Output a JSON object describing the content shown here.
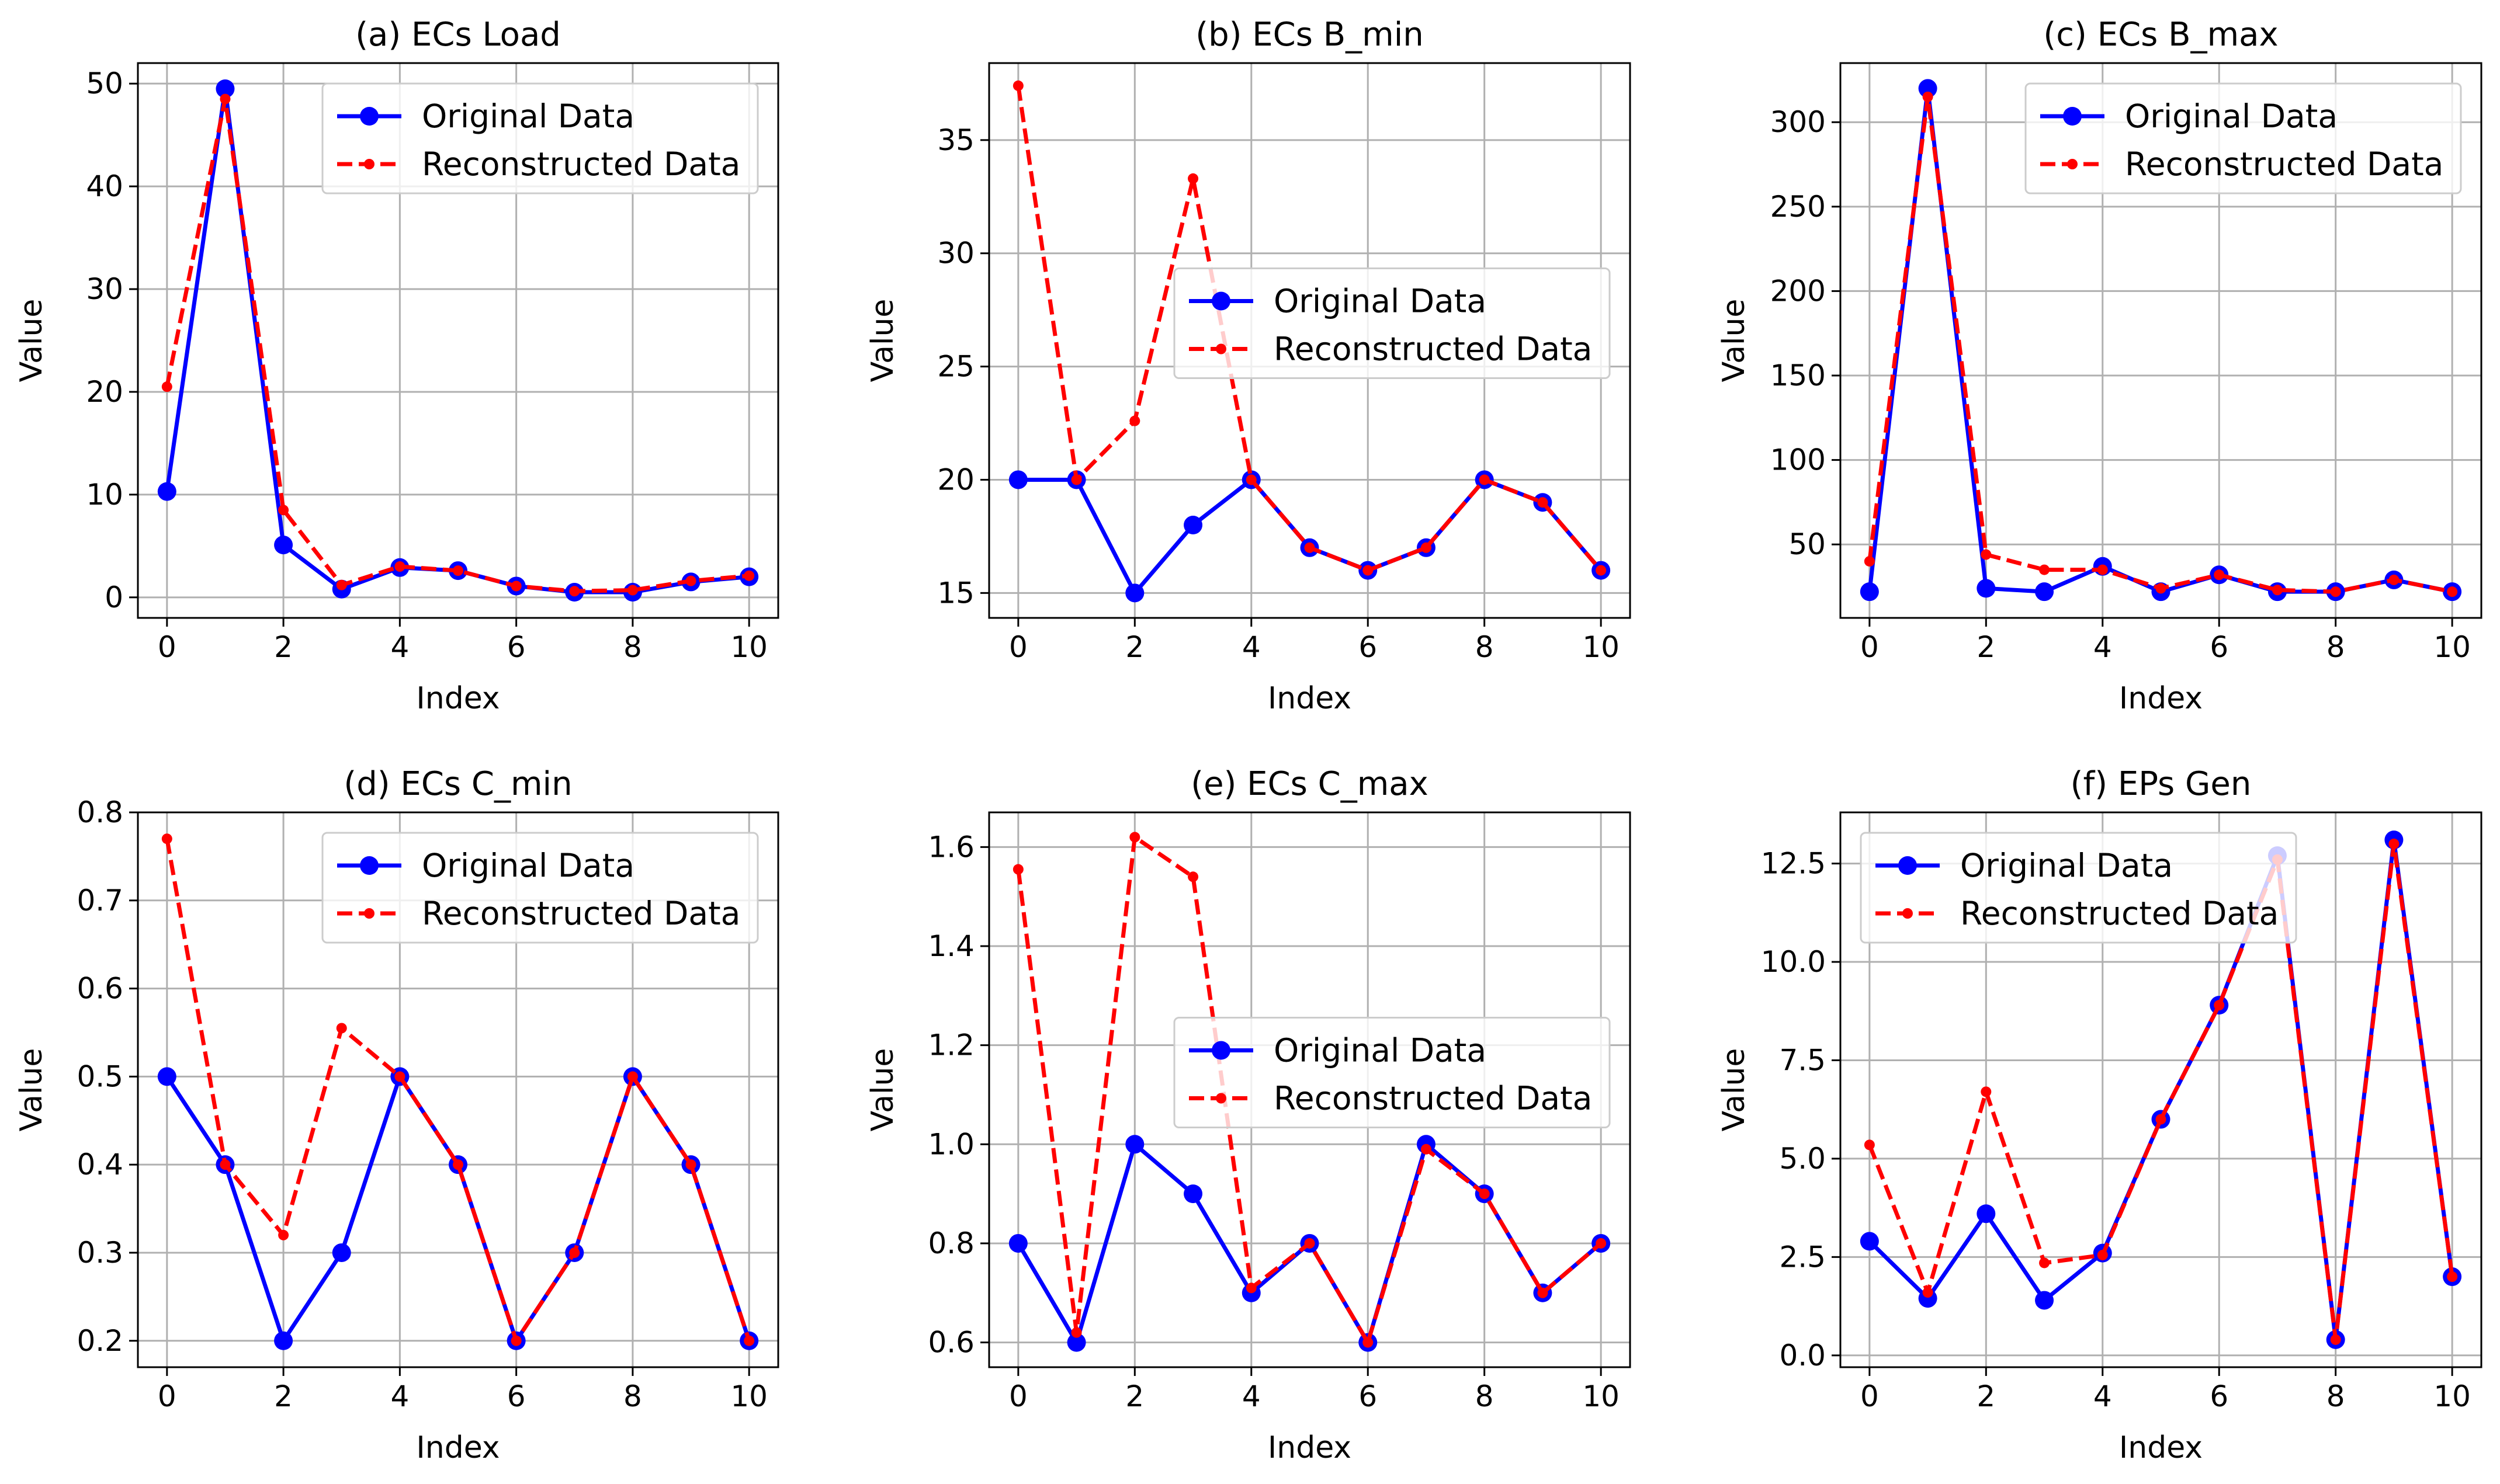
{
  "colors": {
    "original": "#0000ff",
    "reconstructed": "#ff0000",
    "grid": "#b0b0b0"
  },
  "chart_data": [
    {
      "type": "line",
      "title": "(a) ECs Load",
      "xlabel": "Index",
      "ylabel": "Value",
      "xlim": [
        -0.5,
        10.5
      ],
      "ylim": [
        -2,
        52
      ],
      "xticks": [
        0,
        2,
        4,
        6,
        8,
        10
      ],
      "yticks": [
        0,
        10,
        20,
        30,
        40,
        50
      ],
      "ytick_labels": [
        "0",
        "10",
        "20",
        "30",
        "40",
        "50"
      ],
      "grid": true,
      "legend": "upper-right",
      "x": [
        0,
        1,
        2,
        3,
        4,
        5,
        6,
        7,
        8,
        9,
        10
      ],
      "series": [
        {
          "name": "Original Data",
          "style": "solid-circle",
          "values": [
            10.3,
            49.5,
            5.1,
            0.8,
            2.9,
            2.6,
            1.1,
            0.5,
            0.5,
            1.5,
            2.0
          ]
        },
        {
          "name": "Reconstructed Data",
          "style": "dashed-dot",
          "values": [
            20.5,
            48.5,
            8.5,
            1.2,
            3.0,
            2.6,
            1.1,
            0.6,
            0.7,
            1.6,
            2.1
          ]
        }
      ]
    },
    {
      "type": "line",
      "title": "(b) ECs B_min",
      "xlabel": "Index",
      "ylabel": "Value",
      "xlim": [
        -0.5,
        10.5
      ],
      "ylim": [
        13.9,
        38.4
      ],
      "xticks": [
        0,
        2,
        4,
        6,
        8,
        10
      ],
      "yticks": [
        15,
        20,
        25,
        30,
        35
      ],
      "ytick_labels": [
        "15",
        "20",
        "25",
        "30",
        "35"
      ],
      "grid": true,
      "legend": "center-right",
      "x": [
        0,
        1,
        2,
        3,
        4,
        5,
        6,
        7,
        8,
        9,
        10
      ],
      "series": [
        {
          "name": "Original Data",
          "style": "solid-circle",
          "values": [
            20,
            20,
            15,
            18,
            20,
            17,
            16,
            17,
            20,
            19,
            16
          ]
        },
        {
          "name": "Reconstructed Data",
          "style": "dashed-dot",
          "values": [
            37.4,
            20.0,
            22.6,
            33.3,
            20.0,
            17.0,
            16.0,
            17.0,
            20.0,
            19.0,
            16.0
          ]
        }
      ]
    },
    {
      "type": "line",
      "title": "(c) ECs B_max",
      "xlabel": "Index",
      "ylabel": "Value",
      "xlim": [
        -0.5,
        10.5
      ],
      "ylim": [
        6.5,
        335
      ],
      "xticks": [
        0,
        2,
        4,
        6,
        8,
        10
      ],
      "yticks": [
        50,
        100,
        150,
        200,
        250,
        300
      ],
      "ytick_labels": [
        "50",
        "100",
        "150",
        "200",
        "250",
        "300"
      ],
      "grid": true,
      "legend": "upper-right",
      "x": [
        0,
        1,
        2,
        3,
        4,
        5,
        6,
        7,
        8,
        9,
        10
      ],
      "series": [
        {
          "name": "Original Data",
          "style": "solid-circle",
          "values": [
            22,
            320,
            24,
            22,
            37,
            22,
            32,
            22,
            22,
            29,
            22
          ]
        },
        {
          "name": "Reconstructed Data",
          "style": "dashed-dot",
          "values": [
            40,
            315,
            44,
            35,
            35,
            24,
            32,
            23,
            22,
            29,
            22
          ]
        }
      ]
    },
    {
      "type": "line",
      "title": "(d) ECs C_min",
      "xlabel": "Index",
      "ylabel": "Value",
      "xlim": [
        -0.5,
        10.5
      ],
      "ylim": [
        0.17,
        0.8
      ],
      "xticks": [
        0,
        2,
        4,
        6,
        8,
        10
      ],
      "yticks": [
        0.2,
        0.3,
        0.4,
        0.5,
        0.6,
        0.7,
        0.8
      ],
      "ytick_labels": [
        "0.2",
        "0.3",
        "0.4",
        "0.5",
        "0.6",
        "0.7",
        "0.8"
      ],
      "grid": true,
      "legend": "upper-right",
      "x": [
        0,
        1,
        2,
        3,
        4,
        5,
        6,
        7,
        8,
        9,
        10
      ],
      "series": [
        {
          "name": "Original Data",
          "style": "solid-circle",
          "values": [
            0.5,
            0.4,
            0.2,
            0.3,
            0.5,
            0.4,
            0.2,
            0.3,
            0.5,
            0.4,
            0.2
          ]
        },
        {
          "name": "Reconstructed Data",
          "style": "dashed-dot",
          "values": [
            0.77,
            0.4,
            0.32,
            0.555,
            0.5,
            0.4,
            0.2,
            0.3,
            0.5,
            0.4,
            0.2
          ]
        }
      ]
    },
    {
      "type": "line",
      "title": "(e) ECs C_max",
      "xlabel": "Index",
      "ylabel": "Value",
      "xlim": [
        -0.5,
        10.5
      ],
      "ylim": [
        0.55,
        1.67
      ],
      "xticks": [
        0,
        2,
        4,
        6,
        8,
        10
      ],
      "yticks": [
        0.6,
        0.8,
        1.0,
        1.2,
        1.4,
        1.6
      ],
      "ytick_labels": [
        "0.6",
        "0.8",
        "1.0",
        "1.2",
        "1.4",
        "1.6"
      ],
      "grid": true,
      "legend": "center-right",
      "x": [
        0,
        1,
        2,
        3,
        4,
        5,
        6,
        7,
        8,
        9,
        10
      ],
      "series": [
        {
          "name": "Original Data",
          "style": "solid-circle",
          "values": [
            0.8,
            0.6,
            1.0,
            0.9,
            0.7,
            0.8,
            0.6,
            1.0,
            0.9,
            0.7,
            0.8
          ]
        },
        {
          "name": "Reconstructed Data",
          "style": "dashed-dot",
          "values": [
            1.555,
            0.62,
            1.62,
            1.54,
            0.71,
            0.8,
            0.6,
            0.99,
            0.9,
            0.7,
            0.8
          ]
        }
      ]
    },
    {
      "type": "line",
      "title": "(f) EPs Gen",
      "xlabel": "Index",
      "ylabel": "Value",
      "xlim": [
        -0.5,
        10.5
      ],
      "ylim": [
        -0.3,
        13.8
      ],
      "xticks": [
        0,
        2,
        4,
        6,
        8,
        10
      ],
      "yticks": [
        0,
        2.5,
        5,
        7.5,
        10,
        12.5
      ],
      "ytick_labels": [
        "0.0",
        "2.5",
        "5.0",
        "7.5",
        "10.0",
        "12.5"
      ],
      "grid": true,
      "legend": "upper-left",
      "x": [
        0,
        1,
        2,
        3,
        4,
        5,
        6,
        7,
        8,
        9,
        10
      ],
      "series": [
        {
          "name": "Original Data",
          "style": "solid-circle",
          "values": [
            2.9,
            1.45,
            3.6,
            1.4,
            2.6,
            6.0,
            8.9,
            12.7,
            0.4,
            13.1,
            2.0
          ]
        },
        {
          "name": "Reconstructed Data",
          "style": "dashed-dot",
          "values": [
            5.35,
            1.6,
            6.7,
            2.35,
            2.55,
            6.0,
            8.9,
            12.6,
            0.4,
            13.0,
            2.0
          ]
        }
      ]
    }
  ]
}
